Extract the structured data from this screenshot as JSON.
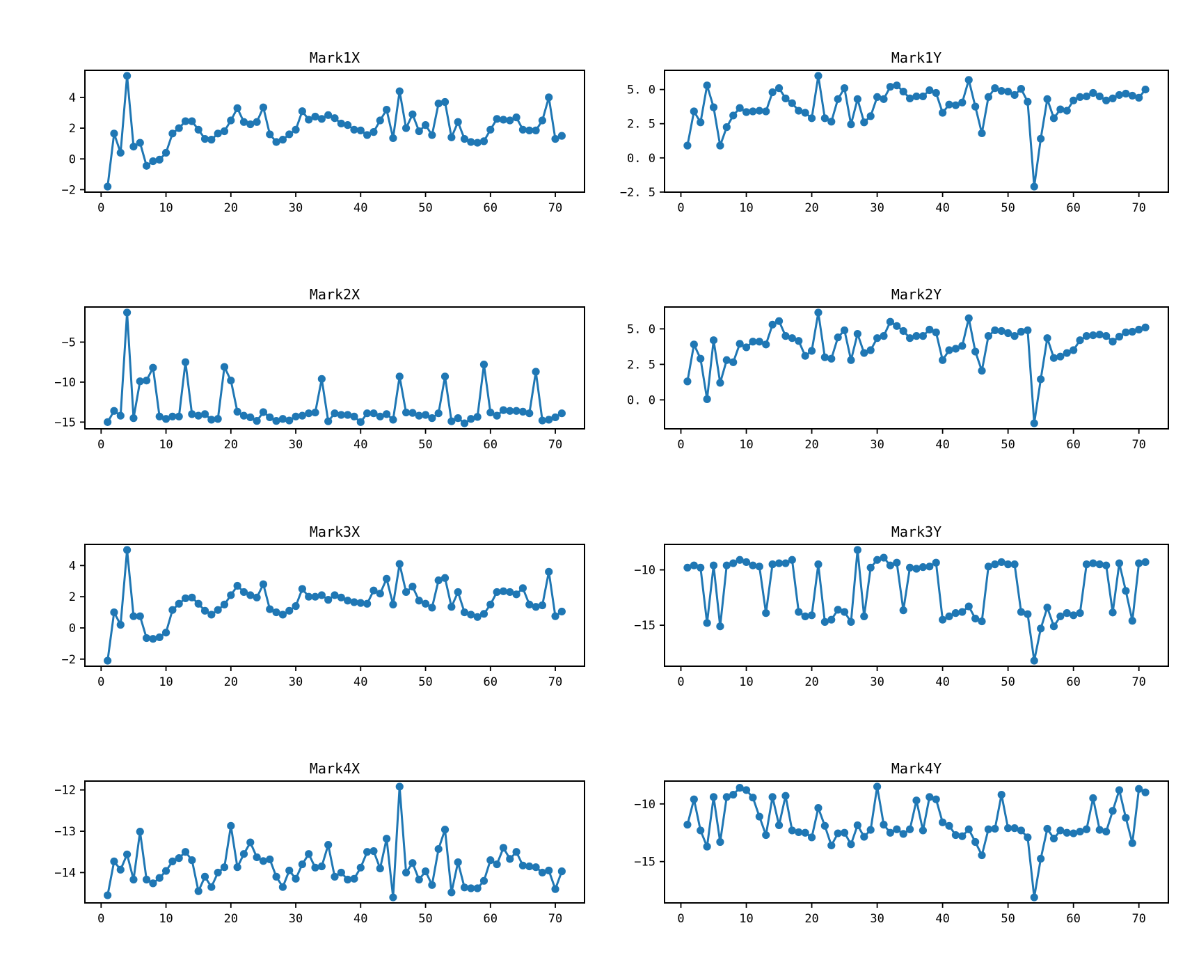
{
  "figure": {
    "background": "#ffffff"
  },
  "colors": {
    "series": "#1f77b4",
    "axis": "#000000",
    "text": "#000000"
  },
  "x_axis": {
    "xlim": [
      -2.5,
      74.5
    ],
    "ticks": [
      0,
      10,
      20,
      30,
      40,
      50,
      60,
      70
    ],
    "tick_labels": [
      "0",
      "10",
      "20",
      "30",
      "40",
      "50",
      "60",
      "70"
    ]
  },
  "chart_data": [
    {
      "type": "line",
      "title": "Mark1X",
      "marker": "circle",
      "x_start": 1,
      "xlabel": "",
      "ylabel": "",
      "grid": false,
      "legend": "none",
      "ylim": [
        -2.16,
        5.76
      ],
      "yticks": [
        4,
        2,
        0,
        -2
      ],
      "ytick_labels": [
        "4",
        "2",
        "0",
        "−2"
      ],
      "values": [
        -1.8,
        1.65,
        0.4,
        5.4,
        0.8,
        1.05,
        -0.45,
        -0.15,
        -0.05,
        0.4,
        1.65,
        2.0,
        2.45,
        2.45,
        1.9,
        1.3,
        1.25,
        1.65,
        1.8,
        2.5,
        3.3,
        2.4,
        2.25,
        2.4,
        3.35,
        1.6,
        1.1,
        1.25,
        1.6,
        1.9,
        3.1,
        2.55,
        2.75,
        2.6,
        2.85,
        2.65,
        2.3,
        2.2,
        1.9,
        1.85,
        1.55,
        1.75,
        2.5,
        3.2,
        1.35,
        4.4,
        2.0,
        2.9,
        1.8,
        2.2,
        1.55,
        3.6,
        3.7,
        1.4,
        2.4,
        1.3,
        1.1,
        1.05,
        1.15,
        1.9,
        2.6,
        2.55,
        2.5,
        2.7,
        1.9,
        1.85,
        1.85,
        2.5,
        4.0,
        1.3,
        1.5
      ]
    },
    {
      "type": "line",
      "title": "Mark1Y",
      "marker": "circle",
      "x_start": 1,
      "xlabel": "",
      "ylabel": "",
      "grid": false,
      "legend": "none",
      "ylim": [
        -2.505,
        6.405
      ],
      "yticks": [
        5.0,
        2.5,
        0.0,
        -2.5
      ],
      "ytick_labels": [
        "5. 0",
        "2. 5",
        "0. 0",
        "−2. 5"
      ],
      "values": [
        0.9,
        3.4,
        2.6,
        5.3,
        3.7,
        0.9,
        2.25,
        3.1,
        3.65,
        3.35,
        3.4,
        3.45,
        3.4,
        4.8,
        5.1,
        4.35,
        4.0,
        3.45,
        3.3,
        2.9,
        6.0,
        2.9,
        2.65,
        4.3,
        5.1,
        2.45,
        4.3,
        2.6,
        3.05,
        4.45,
        4.3,
        5.2,
        5.3,
        4.85,
        4.35,
        4.5,
        4.5,
        4.95,
        4.75,
        3.3,
        3.9,
        3.85,
        4.05,
        5.7,
        3.75,
        1.8,
        4.45,
        5.1,
        4.9,
        4.85,
        4.6,
        5.05,
        4.1,
        -2.1,
        1.4,
        4.3,
        2.9,
        3.55,
        3.45,
        4.2,
        4.45,
        4.5,
        4.75,
        4.5,
        4.2,
        4.35,
        4.6,
        4.7,
        4.55,
        4.4,
        5.0
      ]
    },
    {
      "type": "line",
      "title": "Mark2X",
      "marker": "circle",
      "x_start": 1,
      "xlabel": "",
      "ylabel": "",
      "grid": false,
      "legend": "none",
      "ylim": [
        -15.84,
        -0.61
      ],
      "yticks": [
        -5,
        -10,
        -15
      ],
      "ytick_labels": [
        "−5",
        "−10",
        "−15"
      ],
      "values": [
        -15.0,
        -13.6,
        -14.2,
        -1.3,
        -14.5,
        -9.9,
        -9.8,
        -8.2,
        -14.3,
        -14.6,
        -14.3,
        -14.3,
        -7.5,
        -14.0,
        -14.2,
        -14.0,
        -14.7,
        -14.6,
        -8.1,
        -9.8,
        -13.7,
        -14.2,
        -14.4,
        -14.85,
        -13.75,
        -14.4,
        -14.85,
        -14.6,
        -14.8,
        -14.3,
        -14.2,
        -13.9,
        -13.8,
        -9.6,
        -14.9,
        -13.9,
        -14.1,
        -14.1,
        -14.3,
        -15.0,
        -13.9,
        -13.9,
        -14.3,
        -14.0,
        -14.7,
        -9.3,
        -13.8,
        -13.85,
        -14.2,
        -14.1,
        -14.5,
        -13.9,
        -9.3,
        -14.9,
        -14.5,
        -15.15,
        -14.6,
        -14.35,
        -7.8,
        -13.8,
        -14.2,
        -13.5,
        -13.6,
        -13.6,
        -13.7,
        -13.9,
        -8.7,
        -14.8,
        -14.7,
        -14.4,
        -13.9
      ]
    },
    {
      "type": "line",
      "title": "Mark2Y",
      "marker": "circle",
      "x_start": 1,
      "xlabel": "",
      "ylabel": "",
      "grid": false,
      "legend": "none",
      "ylim": [
        -2.04,
        6.54
      ],
      "yticks": [
        5.0,
        2.5,
        0.0
      ],
      "ytick_labels": [
        "5. 0",
        "2. 5",
        "0. 0"
      ],
      "values": [
        1.3,
        3.9,
        2.9,
        0.05,
        4.2,
        1.2,
        2.8,
        2.65,
        3.95,
        3.7,
        4.1,
        4.1,
        3.9,
        5.3,
        5.55,
        4.5,
        4.35,
        4.15,
        3.1,
        3.45,
        6.15,
        3.0,
        2.9,
        4.4,
        4.9,
        2.8,
        4.65,
        3.3,
        3.5,
        4.35,
        4.5,
        5.5,
        5.2,
        4.85,
        4.35,
        4.5,
        4.5,
        4.95,
        4.75,
        2.8,
        3.5,
        3.6,
        3.8,
        5.75,
        3.4,
        2.05,
        4.5,
        4.9,
        4.85,
        4.7,
        4.5,
        4.8,
        4.9,
        -1.65,
        1.45,
        4.35,
        2.95,
        3.05,
        3.3,
        3.5,
        4.2,
        4.5,
        4.55,
        4.6,
        4.5,
        4.1,
        4.45,
        4.75,
        4.8,
        4.95,
        5.1
      ]
    },
    {
      "type": "line",
      "title": "Mark3X",
      "marker": "circle",
      "x_start": 1,
      "xlabel": "",
      "ylabel": "",
      "grid": false,
      "legend": "none",
      "ylim": [
        -2.455,
        5.355
      ],
      "yticks": [
        4,
        2,
        0,
        -2
      ],
      "ytick_labels": [
        "4",
        "2",
        "0",
        "−2"
      ],
      "values": [
        -2.1,
        1.0,
        0.2,
        5.0,
        0.75,
        0.75,
        -0.65,
        -0.7,
        -0.6,
        -0.3,
        1.15,
        1.55,
        1.9,
        1.95,
        1.55,
        1.1,
        0.85,
        1.15,
        1.5,
        2.1,
        2.7,
        2.3,
        2.1,
        1.95,
        2.8,
        1.2,
        1.0,
        0.85,
        1.1,
        1.4,
        2.5,
        2.0,
        2.0,
        2.1,
        1.8,
        2.1,
        1.95,
        1.75,
        1.65,
        1.6,
        1.55,
        2.4,
        2.2,
        3.15,
        1.5,
        4.1,
        2.3,
        2.65,
        1.75,
        1.55,
        1.3,
        3.05,
        3.2,
        1.35,
        2.3,
        1.0,
        0.85,
        0.7,
        0.9,
        1.5,
        2.3,
        2.35,
        2.3,
        2.15,
        2.55,
        1.5,
        1.35,
        1.45,
        3.6,
        0.75,
        1.05
      ]
    },
    {
      "type": "line",
      "title": "Mark3Y",
      "marker": "circle",
      "x_start": 1,
      "xlabel": "",
      "ylabel": "",
      "grid": false,
      "legend": "none",
      "ylim": [
        -18.7,
        -7.7
      ],
      "yticks": [
        -10,
        -15
      ],
      "ytick_labels": [
        "−10",
        "−15"
      ],
      "values": [
        -9.8,
        -9.6,
        -9.8,
        -14.8,
        -9.6,
        -15.1,
        -9.6,
        -9.4,
        -9.1,
        -9.3,
        -9.6,
        -9.7,
        -13.9,
        -9.5,
        -9.4,
        -9.4,
        -9.1,
        -13.8,
        -14.2,
        -14.1,
        -9.5,
        -14.7,
        -14.5,
        -13.6,
        -13.8,
        -14.7,
        -8.2,
        -14.2,
        -9.8,
        -9.1,
        -8.9,
        -9.6,
        -9.35,
        -13.65,
        -9.8,
        -9.9,
        -9.75,
        -9.7,
        -9.35,
        -14.5,
        -14.2,
        -13.9,
        -13.8,
        -13.3,
        -14.4,
        -14.65,
        -9.7,
        -9.5,
        -9.3,
        -9.5,
        -9.5,
        -13.8,
        -14.0,
        -18.2,
        -15.3,
        -13.4,
        -15.1,
        -14.2,
        -13.9,
        -14.1,
        -13.9,
        -9.5,
        -9.4,
        -9.5,
        -9.6,
        -13.85,
        -9.4,
        -11.9,
        -14.6,
        -9.4,
        -9.3
      ]
    },
    {
      "type": "line",
      "title": "Mark4X",
      "marker": "circle",
      "x_start": 1,
      "xlabel": "",
      "ylabel": "",
      "grid": false,
      "legend": "none",
      "ylim": [
        -14.734,
        -11.786
      ],
      "yticks": [
        -12,
        -13,
        -14
      ],
      "ytick_labels": [
        "−12",
        "−13",
        "−14"
      ],
      "values": [
        -14.55,
        -13.73,
        -13.93,
        -13.56,
        -14.17,
        -13.01,
        -14.17,
        -14.26,
        -14.13,
        -13.96,
        -13.73,
        -13.65,
        -13.5,
        -13.7,
        -14.45,
        -14.1,
        -14.35,
        -14.0,
        -13.87,
        -12.87,
        -13.87,
        -13.55,
        -13.27,
        -13.63,
        -13.72,
        -13.68,
        -14.1,
        -14.35,
        -13.95,
        -14.15,
        -13.8,
        -13.55,
        -13.88,
        -13.85,
        -13.33,
        -14.1,
        -14.0,
        -14.17,
        -14.15,
        -13.88,
        -13.5,
        -13.48,
        -13.9,
        -13.18,
        -14.6,
        -11.92,
        -14.0,
        -13.77,
        -14.17,
        -13.97,
        -14.3,
        -13.43,
        -12.96,
        -14.48,
        -13.75,
        -14.36,
        -14.38,
        -14.38,
        -14.2,
        -13.7,
        -13.8,
        -13.4,
        -13.67,
        -13.5,
        -13.83,
        -13.85,
        -13.87,
        -14.0,
        -13.95,
        -14.4,
        -13.97
      ]
    },
    {
      "type": "line",
      "title": "Mark4Y",
      "marker": "circle",
      "x_start": 1,
      "xlabel": "",
      "ylabel": "",
      "grid": false,
      "legend": "none",
      "ylim": [
        -18.58,
        -8.02
      ],
      "yticks": [
        -10,
        -15
      ],
      "ytick_labels": [
        "−10",
        "−15"
      ],
      "values": [
        -11.8,
        -9.6,
        -12.3,
        -13.7,
        -9.4,
        -13.3,
        -9.4,
        -9.2,
        -8.6,
        -8.8,
        -9.45,
        -11.1,
        -12.7,
        -9.4,
        -11.85,
        -9.3,
        -12.3,
        -12.45,
        -12.5,
        -12.9,
        -10.35,
        -11.9,
        -13.6,
        -12.55,
        -12.5,
        -13.5,
        -11.85,
        -12.85,
        -12.25,
        -8.5,
        -11.8,
        -12.5,
        -12.2,
        -12.6,
        -12.2,
        -9.7,
        -12.3,
        -9.4,
        -9.6,
        -11.6,
        -11.9,
        -12.7,
        -12.8,
        -12.2,
        -13.3,
        -14.45,
        -12.2,
        -12.15,
        -9.2,
        -12.1,
        -12.1,
        -12.3,
        -12.9,
        -18.1,
        -14.75,
        -12.15,
        -13.0,
        -12.3,
        -12.5,
        -12.55,
        -12.4,
        -12.2,
        -9.5,
        -12.25,
        -12.4,
        -10.6,
        -8.8,
        -11.2,
        -13.4,
        -8.7,
        -9.0
      ]
    }
  ]
}
